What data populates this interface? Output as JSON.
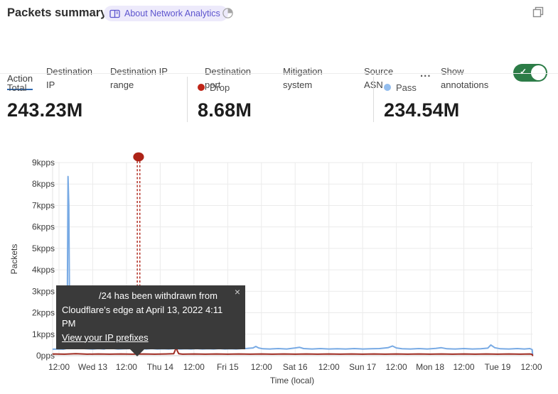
{
  "header": {
    "title": "Packets summary",
    "badge_label": "About Network Analytics",
    "accent_purple": "#5d55ce"
  },
  "tabs": {
    "items": [
      {
        "label": "Action",
        "selected": true
      },
      {
        "label": "Destination IP",
        "selected": false
      },
      {
        "label": "Destination IP range",
        "selected": false
      },
      {
        "label": "Destination port",
        "selected": false
      },
      {
        "label": "Mitigation system",
        "selected": false
      },
      {
        "label": "Source ASN",
        "selected": false
      }
    ],
    "more_label": "...",
    "annotations_label": "Show annotations",
    "annotations_toggle_on": true,
    "toggle_check": "✓",
    "selected_underline_color": "#3069b0",
    "toggle_color": "#2c7c47"
  },
  "stats": {
    "total": {
      "label": "Total",
      "value": "243.23M"
    },
    "drop": {
      "label": "Drop",
      "value": "8.68M",
      "dot_color": "#bf2518"
    },
    "pass": {
      "label": "Pass",
      "value": "234.54M",
      "dot_color": "#93bdee"
    }
  },
  "tooltip": {
    "line1": "/24 has been withdrawn from",
    "line2": "Cloudflare's edge at April 13, 2022 4:11 PM",
    "link": "View your IP prefixes",
    "close": "×"
  },
  "chart_data": {
    "type": "line",
    "title": "Packets summary",
    "xlabel": "Time (local)",
    "ylabel": "Packets",
    "x_unit": "hours from first tick (Tue Apr 12 2022 12:00 local)",
    "xlim": [
      -2.1,
      168.5
    ],
    "ylim": [
      0,
      9
    ],
    "grid": true,
    "x_ticks": [
      {
        "t": 0,
        "label": "12:00"
      },
      {
        "t": 12,
        "label": "Wed 13"
      },
      {
        "t": 24,
        "label": "12:00"
      },
      {
        "t": 36,
        "label": "Thu 14"
      },
      {
        "t": 48,
        "label": "12:00"
      },
      {
        "t": 60,
        "label": "Fri 15"
      },
      {
        "t": 72,
        "label": "12:00"
      },
      {
        "t": 84,
        "label": "Sat 16"
      },
      {
        "t": 96,
        "label": "12:00"
      },
      {
        "t": 108,
        "label": "Sun 17"
      },
      {
        "t": 120,
        "label": "12:00"
      },
      {
        "t": 132,
        "label": "Mon 18"
      },
      {
        "t": 144,
        "label": "12:00"
      },
      {
        "t": 156,
        "label": "Tue 19"
      },
      {
        "t": 168,
        "label": "12:00"
      }
    ],
    "y_ticks": [
      {
        "v": 0,
        "label": "0pps"
      },
      {
        "v": 1,
        "label": "1kpps"
      },
      {
        "v": 2,
        "label": "2kpps"
      },
      {
        "v": 3,
        "label": "3kpps"
      },
      {
        "v": 4,
        "label": "4kpps"
      },
      {
        "v": 5,
        "label": "5kpps"
      },
      {
        "v": 6,
        "label": "6kpps"
      },
      {
        "v": 7,
        "label": "7kpps"
      },
      {
        "v": 8,
        "label": "8kpps"
      },
      {
        "v": 9,
        "label": "9kpps"
      }
    ],
    "series": [
      {
        "name": "Pass",
        "color": "#78aae4",
        "unit": "kpps",
        "points": [
          [
            -2.1,
            0.3
          ],
          [
            0,
            0.31
          ],
          [
            1.5,
            0.3
          ],
          [
            2.6,
            0.33
          ],
          [
            2.9,
            1.2
          ],
          [
            3.2,
            8.35
          ],
          [
            3.5,
            7.0
          ],
          [
            3.8,
            1.6
          ],
          [
            4.3,
            0.85
          ],
          [
            5.1,
            0.8
          ],
          [
            5.6,
            0.55
          ],
          [
            6.5,
            0.4
          ],
          [
            8,
            0.34
          ],
          [
            10,
            0.32
          ],
          [
            12,
            0.31
          ],
          [
            14,
            0.33
          ],
          [
            16,
            0.31
          ],
          [
            17.4,
            0.36
          ],
          [
            18,
            0.56
          ],
          [
            18.8,
            0.42
          ],
          [
            19.6,
            0.33
          ],
          [
            21,
            0.31
          ],
          [
            23,
            0.32
          ],
          [
            25,
            0.33
          ],
          [
            26.5,
            0.38
          ],
          [
            27.6,
            0.62
          ],
          [
            28.4,
            0.44
          ],
          [
            29.4,
            0.34
          ],
          [
            31,
            0.31
          ],
          [
            33,
            0.33
          ],
          [
            35,
            0.31
          ],
          [
            37,
            0.32
          ],
          [
            39,
            0.31
          ],
          [
            41,
            0.33
          ],
          [
            43,
            0.31
          ],
          [
            45,
            0.32
          ],
          [
            47,
            0.31
          ],
          [
            49,
            0.33
          ],
          [
            51,
            0.31
          ],
          [
            53,
            0.32
          ],
          [
            55,
            0.31
          ],
          [
            57,
            0.33
          ],
          [
            59,
            0.31
          ],
          [
            61,
            0.32
          ],
          [
            63,
            0.31
          ],
          [
            65,
            0.33
          ],
          [
            67,
            0.34
          ],
          [
            69,
            0.36
          ],
          [
            70,
            0.43
          ],
          [
            71,
            0.36
          ],
          [
            72.5,
            0.32
          ],
          [
            75,
            0.31
          ],
          [
            78,
            0.33
          ],
          [
            81,
            0.31
          ],
          [
            84,
            0.36
          ],
          [
            85.5,
            0.39
          ],
          [
            87,
            0.33
          ],
          [
            90,
            0.31
          ],
          [
            93,
            0.33
          ],
          [
            96,
            0.31
          ],
          [
            99,
            0.32
          ],
          [
            102,
            0.31
          ],
          [
            105,
            0.33
          ],
          [
            108,
            0.31
          ],
          [
            111,
            0.32
          ],
          [
            114,
            0.33
          ],
          [
            117,
            0.37
          ],
          [
            118.6,
            0.45
          ],
          [
            120,
            0.36
          ],
          [
            122,
            0.32
          ],
          [
            125,
            0.31
          ],
          [
            128,
            0.33
          ],
          [
            131,
            0.31
          ],
          [
            134,
            0.34
          ],
          [
            136,
            0.37
          ],
          [
            138,
            0.32
          ],
          [
            141,
            0.31
          ],
          [
            144,
            0.33
          ],
          [
            147,
            0.31
          ],
          [
            150,
            0.32
          ],
          [
            152.5,
            0.35
          ],
          [
            153.6,
            0.5
          ],
          [
            155,
            0.37
          ],
          [
            157,
            0.32
          ],
          [
            160,
            0.31
          ],
          [
            163,
            0.33
          ],
          [
            165.5,
            0.31
          ],
          [
            167.5,
            0.33
          ],
          [
            168.3,
            0.28
          ],
          [
            168.45,
            0.05
          ]
        ]
      },
      {
        "name": "Drop",
        "color": "#9e2b21",
        "unit": "kpps",
        "points": [
          [
            -2.1,
            0.08
          ],
          [
            2,
            0.07
          ],
          [
            6,
            0.09
          ],
          [
            10,
            0.07
          ],
          [
            14,
            0.08
          ],
          [
            18,
            0.07
          ],
          [
            22,
            0.08
          ],
          [
            26,
            0.07
          ],
          [
            30,
            0.08
          ],
          [
            34,
            0.07
          ],
          [
            38,
            0.08
          ],
          [
            40.8,
            0.09
          ],
          [
            41.4,
            0.28
          ],
          [
            41.7,
            0.42
          ],
          [
            42.1,
            0.22
          ],
          [
            42.6,
            0.09
          ],
          [
            44,
            0.07
          ],
          [
            48,
            0.08
          ],
          [
            52,
            0.07
          ],
          [
            56,
            0.08
          ],
          [
            60,
            0.07
          ],
          [
            64,
            0.08
          ],
          [
            68,
            0.07
          ],
          [
            72,
            0.08
          ],
          [
            76,
            0.07
          ],
          [
            80,
            0.08
          ],
          [
            84,
            0.07
          ],
          [
            88,
            0.08
          ],
          [
            92,
            0.07
          ],
          [
            96,
            0.08
          ],
          [
            100,
            0.07
          ],
          [
            104,
            0.08
          ],
          [
            108,
            0.07
          ],
          [
            112,
            0.08
          ],
          [
            116,
            0.07
          ],
          [
            120,
            0.08
          ],
          [
            124,
            0.07
          ],
          [
            128,
            0.08
          ],
          [
            132,
            0.07
          ],
          [
            136,
            0.08
          ],
          [
            140,
            0.07
          ],
          [
            144,
            0.08
          ],
          [
            148,
            0.07
          ],
          [
            152,
            0.08
          ],
          [
            156,
            0.07
          ],
          [
            160,
            0.08
          ],
          [
            164,
            0.07
          ],
          [
            167.5,
            0.08
          ],
          [
            168.3,
            0.06
          ],
          [
            168.45,
            0.01
          ]
        ]
      }
    ],
    "legend": [
      {
        "name": "Drop",
        "color": "#bf2518"
      },
      {
        "name": "Pass",
        "color": "#93bdee"
      }
    ],
    "annotation": {
      "t": 28.3,
      "marker": "red-dot-with-double-dashed-vertical-line",
      "color": "#ad2317",
      "text": "/24 has been withdrawn from Cloudflare's edge at April 13, 2022 4:11 PM"
    }
  }
}
